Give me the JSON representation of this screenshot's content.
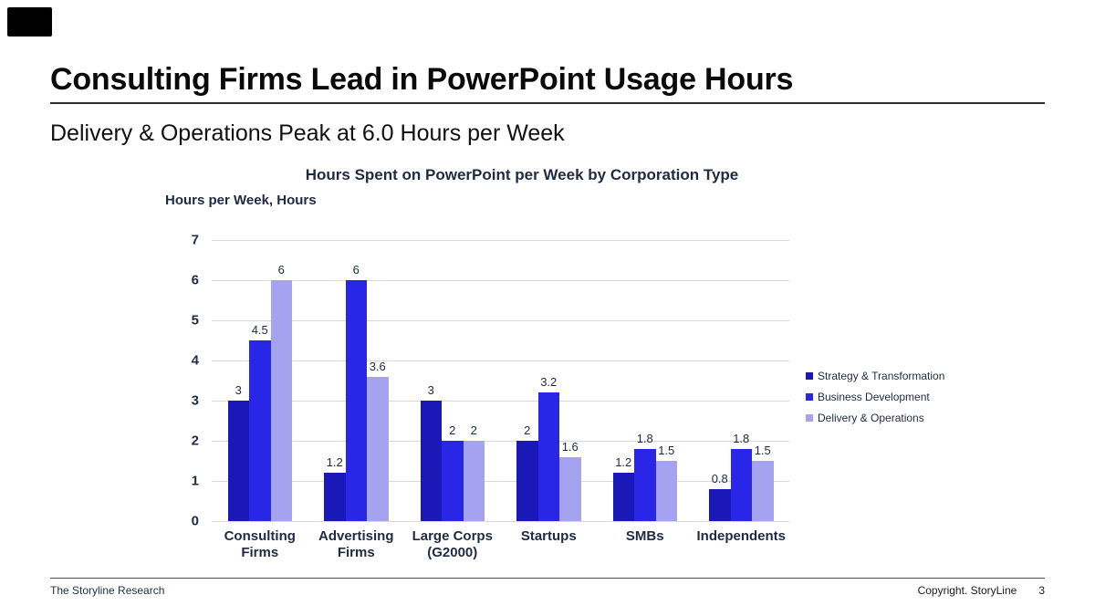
{
  "slide": {
    "title": "Consulting Firms Lead in PowerPoint Usage Hours",
    "subtitle": "Delivery & Operations Peak at 6.0 Hours per Week"
  },
  "footer": {
    "left": "The Storyline Research",
    "copyright": "Copyright. StoryLine",
    "page_number": "3"
  },
  "colors": {
    "text_navy": "#1f2b42",
    "gridline": "#d9d9d9",
    "series1": "#1a18b7",
    "series2": "#2a26e8",
    "series3": "#a5a3f0"
  },
  "chart_data": {
    "type": "bar",
    "title": "Hours Spent on PowerPoint per Week by Corporation Type",
    "unit_label": "Hours per Week, Hours",
    "categories": [
      "Consulting\nFirms",
      "Advertising\nFirms",
      "Large Corps\n(G2000)",
      "Startups",
      "SMBs",
      "Independents"
    ],
    "series": [
      {
        "name": "Strategy & Transformation",
        "color": "#1a18b7",
        "values": [
          3,
          1.2,
          3,
          2,
          1.2,
          0.8
        ]
      },
      {
        "name": "Business Development",
        "color": "#2a26e8",
        "values": [
          4.5,
          6,
          2,
          3.2,
          1.8,
          1.8
        ]
      },
      {
        "name": "Delivery & Operations",
        "color": "#a5a3f0",
        "values": [
          6,
          3.6,
          2,
          1.6,
          1.5,
          1.5
        ]
      }
    ],
    "ylim": [
      0,
      7
    ],
    "yticks": [
      0,
      1,
      2,
      3,
      4,
      5,
      6,
      7
    ],
    "grid": true,
    "legend_position": "right",
    "data_labels": true
  }
}
